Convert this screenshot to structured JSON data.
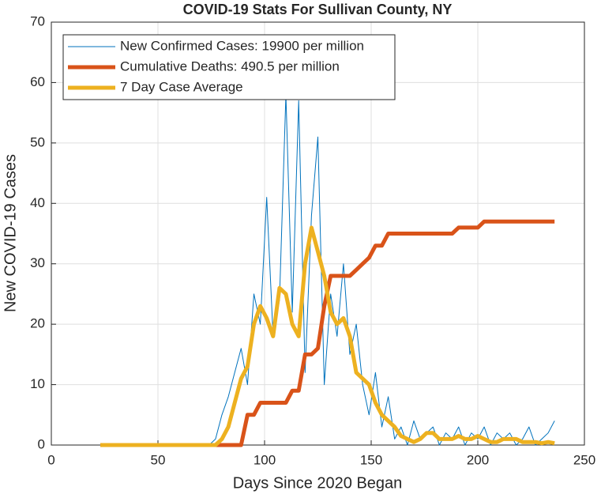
{
  "chart_data": {
    "type": "line",
    "title": "COVID-19 Stats For Sullivan County, NY",
    "x_label": "Days Since 2020 Began",
    "y_label": "New COVID-19 Cases",
    "xlim": [
      0,
      250
    ],
    "xticks": [
      0,
      50,
      100,
      150,
      200,
      250
    ],
    "ylim": [
      0,
      70
    ],
    "yticks": [
      0,
      10,
      20,
      30,
      40,
      50,
      60,
      70
    ],
    "grid": true,
    "legend": "upper left",
    "x": [
      23,
      26,
      29,
      32,
      35,
      38,
      41,
      44,
      47,
      50,
      53,
      56,
      59,
      62,
      65,
      68,
      71,
      74,
      77,
      80,
      83,
      86,
      89,
      92,
      95,
      98,
      101,
      104,
      107,
      110,
      113,
      116,
      119,
      122,
      125,
      128,
      131,
      134,
      137,
      140,
      143,
      146,
      149,
      152,
      155,
      158,
      161,
      164,
      167,
      170,
      173,
      176,
      179,
      182,
      185,
      188,
      191,
      194,
      197,
      200,
      203,
      206,
      209,
      212,
      215,
      218,
      221,
      224,
      227,
      230,
      233,
      236
    ],
    "series": [
      {
        "name": "New Confirmed Cases: 19900 per million",
        "color": "#0072bd",
        "width": 1,
        "values": [
          0,
          0,
          0,
          0,
          0,
          0,
          0,
          0,
          0,
          0,
          0,
          0,
          0,
          0,
          0,
          0,
          0,
          0,
          1,
          5,
          8,
          12,
          16,
          10,
          25,
          20,
          41,
          18,
          24,
          58,
          22,
          57,
          12,
          38,
          51,
          10,
          25,
          18,
          30,
          15,
          20,
          10,
          5,
          12,
          3,
          8,
          1,
          3,
          0,
          4,
          1,
          2,
          3,
          0,
          2,
          1,
          3,
          0,
          2,
          1,
          3,
          0,
          2,
          1,
          2,
          0,
          1,
          3,
          0,
          1,
          2,
          4
        ]
      },
      {
        "name": "Cumulative Deaths: 490.5 per million",
        "color": "#d95319",
        "width": 5,
        "values": [
          0,
          0,
          0,
          0,
          0,
          0,
          0,
          0,
          0,
          0,
          0,
          0,
          0,
          0,
          0,
          0,
          0,
          0,
          0,
          0,
          0,
          0,
          0,
          5,
          5,
          7,
          7,
          7,
          7,
          7,
          9,
          9,
          15,
          15,
          16,
          23,
          28,
          28,
          28,
          28,
          29,
          30,
          31,
          33,
          33,
          35,
          35,
          35,
          35,
          35,
          35,
          35,
          35,
          35,
          35,
          35,
          36,
          36,
          36,
          36,
          37,
          37,
          37,
          37,
          37,
          37,
          37,
          37,
          37,
          37,
          37,
          37
        ]
      },
      {
        "name": "7 Day Case Average",
        "color": "#edb120",
        "width": 5,
        "values": [
          0,
          0,
          0,
          0,
          0,
          0,
          0,
          0,
          0,
          0,
          0,
          0,
          0,
          0,
          0,
          0,
          0,
          0,
          0,
          1,
          3,
          7,
          11,
          13,
          20,
          23,
          21,
          18,
          26,
          25,
          20,
          18,
          30,
          36,
          32,
          28,
          22,
          20,
          21,
          18,
          12,
          11,
          10,
          7,
          5,
          4,
          3,
          1.5,
          1,
          0.5,
          1,
          2,
          2,
          1,
          1,
          1,
          1.5,
          1,
          1,
          1.5,
          1,
          0.5,
          0.5,
          1,
          1,
          1,
          0.5,
          0.5,
          0.5,
          0.3,
          0.5,
          0.3
        ]
      }
    ]
  }
}
